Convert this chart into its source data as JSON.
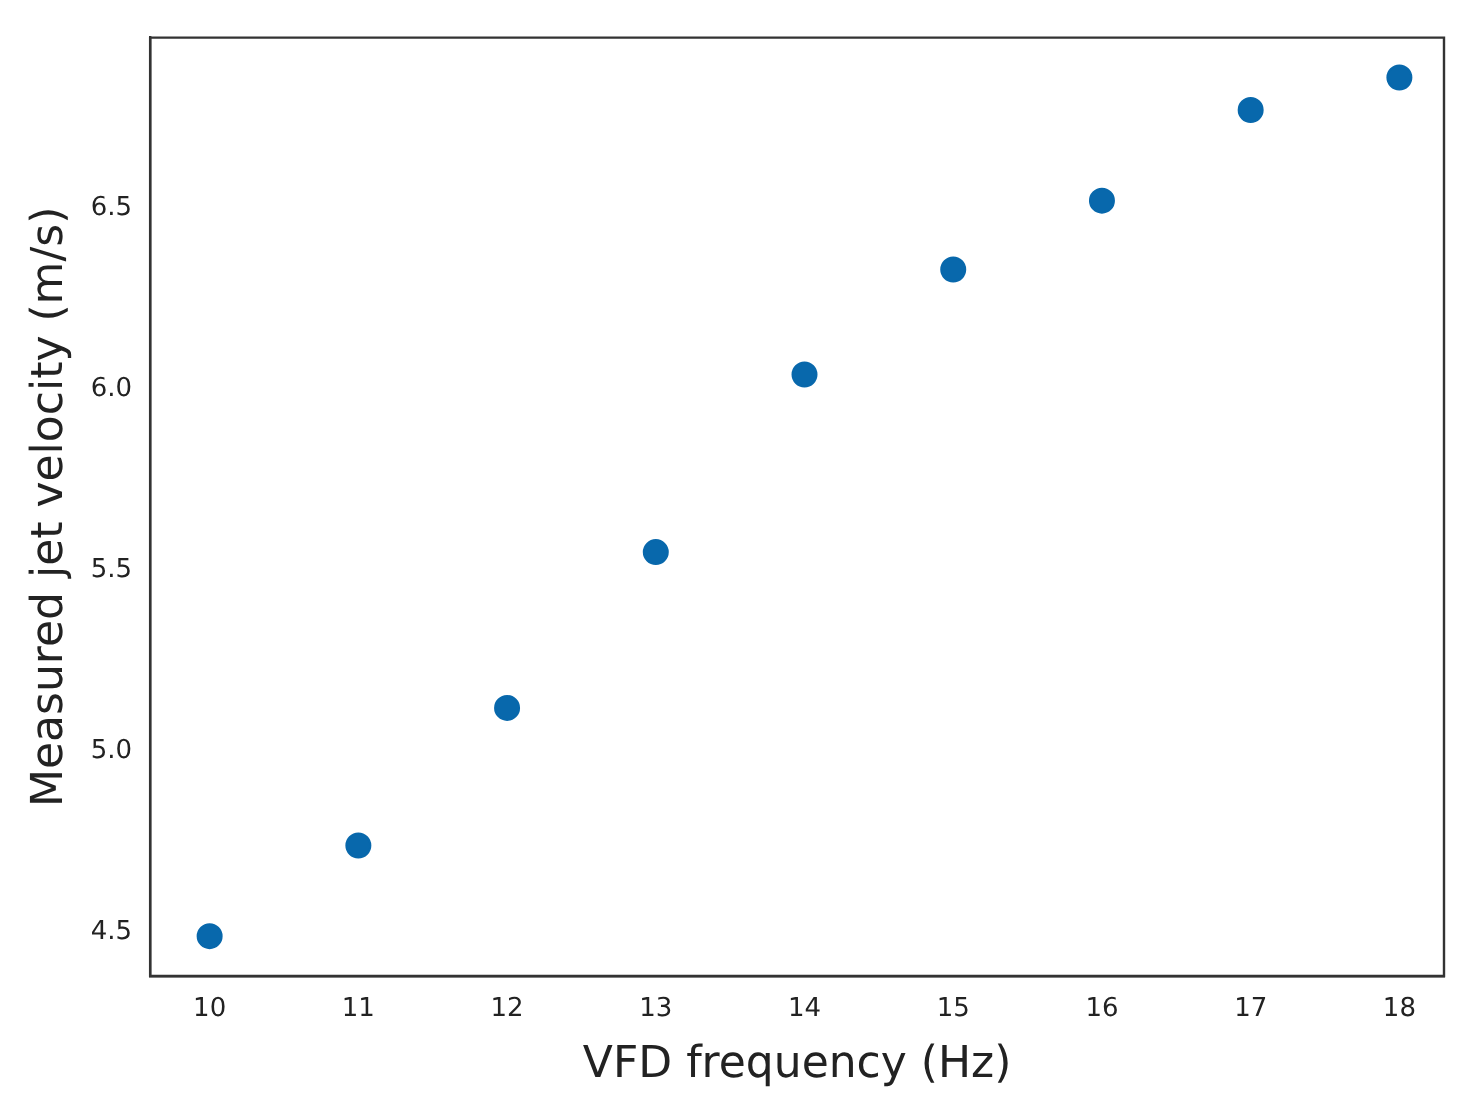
{
  "chart_data": {
    "type": "scatter",
    "xlabel": "VFD frequency (Hz)",
    "ylabel": "Measured jet velocity (m/s)",
    "x": [
      10,
      11,
      12,
      13,
      14,
      15,
      16,
      17,
      18
    ],
    "series": [
      {
        "color": "#0868ac",
        "values": [
          4.49,
          4.74,
          5.12,
          5.55,
          6.04,
          6.33,
          6.52,
          6.77,
          6.86
        ]
      }
    ],
    "xlim": [
      9.6,
      18.3
    ],
    "xticks": [
      10,
      11,
      12,
      13,
      14,
      15,
      16,
      17,
      18
    ],
    "ylim": [
      4.38,
      6.97
    ],
    "yticks": [
      4.5,
      {
        "value": 5,
        "label": "5.0"
      },
      5.5,
      {
        "value": 6,
        "label": "6.0"
      },
      6.5
    ],
    "grid": false,
    "legend": false,
    "marker": "circle"
  }
}
